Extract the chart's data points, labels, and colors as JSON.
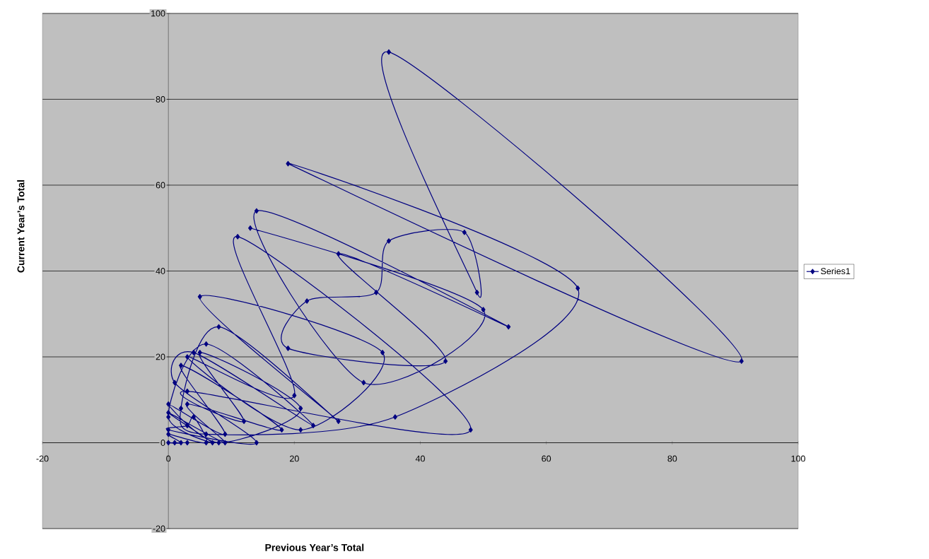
{
  "chart_data": {
    "type": "line",
    "xlabel": "Previous Year’s Total",
    "ylabel": "Current Year’s Total",
    "xlim": [
      -20,
      100
    ],
    "ylim": [
      -20,
      100
    ],
    "xticks": [
      -20,
      0,
      20,
      40,
      60,
      80,
      100
    ],
    "yticks": [
      -20,
      0,
      20,
      40,
      60,
      80,
      100
    ],
    "grid": "y",
    "legend": "right",
    "marker": "diamond",
    "line_style": "solid",
    "series": [
      {
        "name": "Series1",
        "color": "#000080",
        "x": [
          13,
          50,
          31,
          14,
          54,
          27,
          44,
          19,
          22,
          33,
          35,
          47,
          49,
          35,
          91,
          19,
          65,
          36,
          6,
          2,
          8,
          27,
          5,
          34,
          21,
          3,
          20,
          11,
          48,
          3,
          12,
          5,
          21,
          8,
          0,
          9,
          2,
          18,
          3,
          9,
          0,
          7,
          0,
          6,
          23,
          4,
          1,
          14,
          0,
          3,
          4,
          6,
          0,
          2,
          0,
          1,
          3
        ],
        "values": [
          50,
          31,
          14,
          54,
          27,
          44,
          19,
          22,
          33,
          35,
          47,
          49,
          35,
          91,
          19,
          65,
          36,
          6,
          2,
          8,
          27,
          5,
          34,
          21,
          3,
          20,
          11,
          48,
          3,
          12,
          5,
          21,
          8,
          0,
          9,
          2,
          18,
          3,
          9,
          0,
          7,
          0,
          6,
          23,
          4,
          21,
          14,
          0,
          3,
          4,
          6,
          0,
          2,
          0,
          0,
          0,
          0
        ]
      }
    ]
  }
}
